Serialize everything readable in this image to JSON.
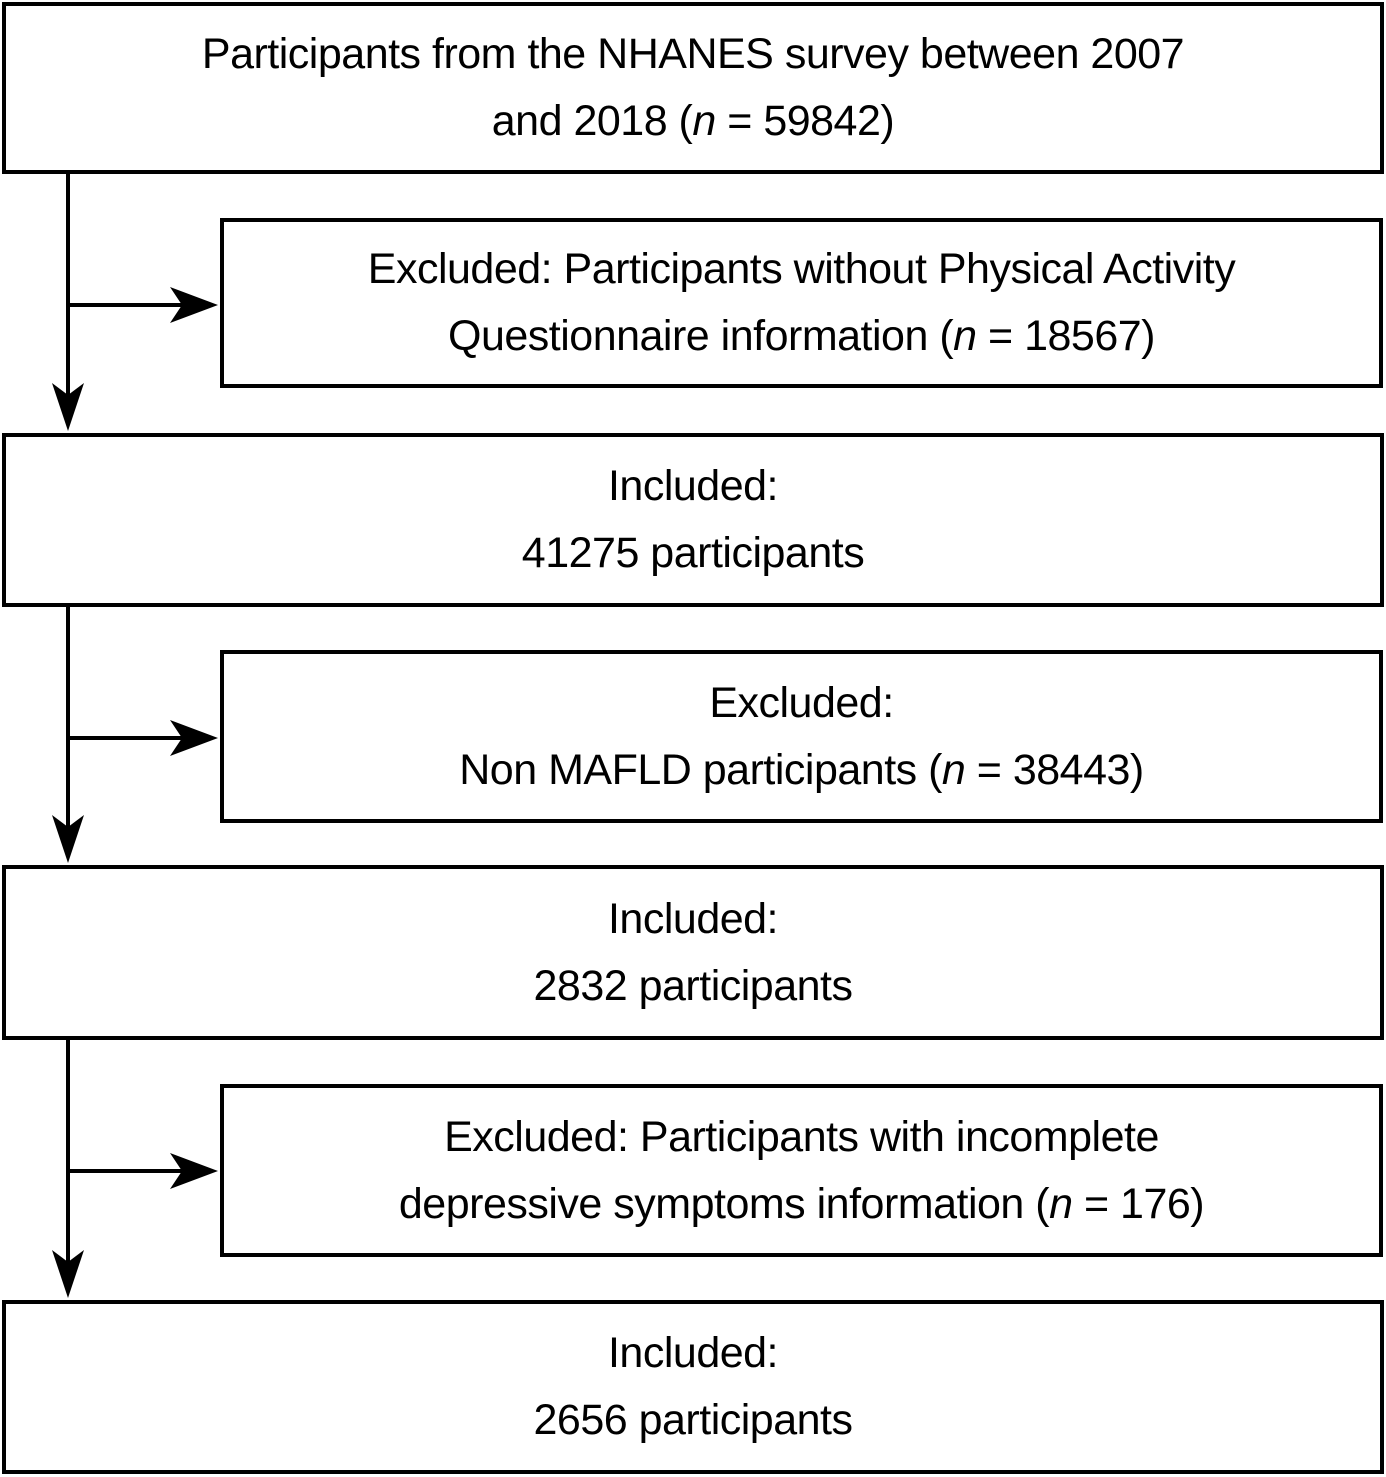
{
  "diagram": {
    "title": "NHANES participant selection flowchart",
    "colors": {
      "line": "#000000",
      "box_border": "#000000",
      "box_fill": "#ffffff",
      "text": "#000000"
    },
    "boxes": [
      {
        "id": "nhanes-total",
        "type": "included",
        "lines": [
          [
            {
              "t": "Participants from the NHANES survey between 2007"
            }
          ],
          [
            {
              "t": "and 2018 ("
            },
            {
              "t": "n",
              "i": true
            },
            {
              "t": " = 59842)"
            }
          ]
        ]
      },
      {
        "id": "excluded-no-physical-activity",
        "type": "excluded",
        "lines": [
          [
            {
              "t": "Excluded: Participants without Physical Activity"
            }
          ],
          [
            {
              "t": "Questionnaire information ("
            },
            {
              "t": "n",
              "i": true
            },
            {
              "t": " = 18567)"
            }
          ]
        ]
      },
      {
        "id": "included-41275",
        "type": "included",
        "lines": [
          [
            {
              "t": "Included:"
            }
          ],
          [
            {
              "t": "41275 participants"
            }
          ]
        ]
      },
      {
        "id": "excluded-non-mafld",
        "type": "excluded",
        "lines": [
          [
            {
              "t": "Excluded:"
            }
          ],
          [
            {
              "t": "Non MAFLD participants ("
            },
            {
              "t": "n",
              "i": true
            },
            {
              "t": " = 38443)"
            }
          ]
        ]
      },
      {
        "id": "included-2832",
        "type": "included",
        "lines": [
          [
            {
              "t": "Included:"
            }
          ],
          [
            {
              "t": "2832 participants"
            }
          ]
        ]
      },
      {
        "id": "excluded-incomplete-depressive",
        "type": "excluded",
        "lines": [
          [
            {
              "t": "Excluded: Participants with incomplete"
            }
          ],
          [
            {
              "t": "depressive symptoms information ("
            },
            {
              "t": "n",
              "i": true
            },
            {
              "t": " = 176)"
            }
          ]
        ]
      },
      {
        "id": "included-2656",
        "type": "included",
        "lines": [
          [
            {
              "t": "Included:"
            }
          ],
          [
            {
              "t": "2656 participants"
            }
          ]
        ]
      }
    ]
  }
}
